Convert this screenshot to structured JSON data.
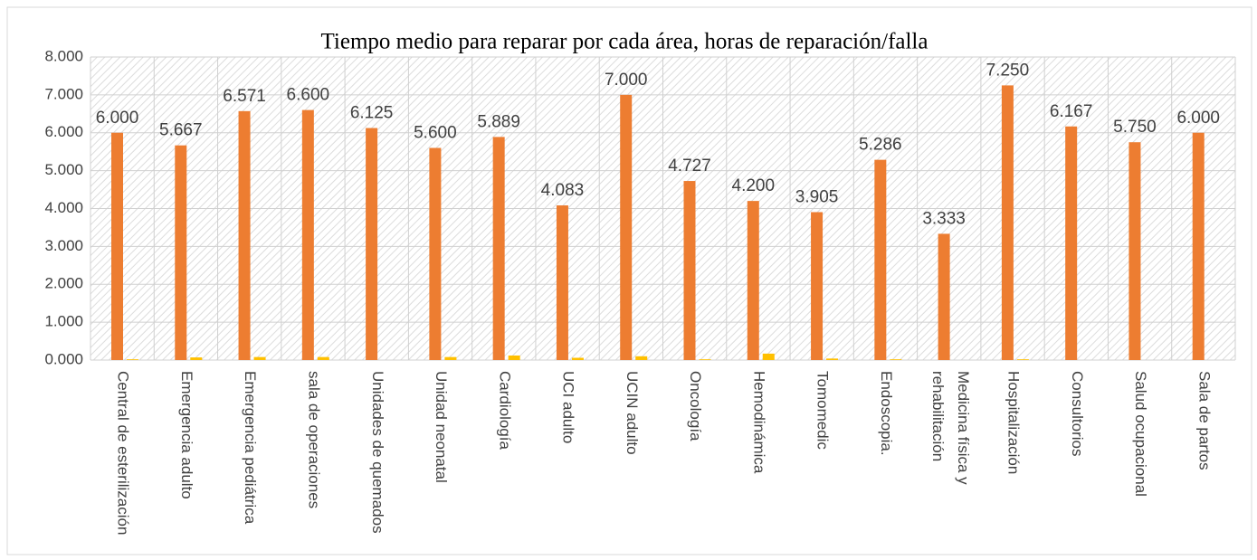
{
  "chart_data": {
    "type": "bar",
    "title": "Tiempo medio para reparar por cada área, horas de reparación/falla",
    "categories": [
      "Central de esterilización",
      "Emergencia adulto",
      "Emergencia pediátrica",
      "sala de operaciones",
      "Unidades de quemados",
      "Unidad neonatal",
      "Cardiología",
      "UCI adulto",
      "UCIN adulto",
      "Oncología",
      "Hemodinámica",
      "Tomomedic",
      "Endoscopia.",
      "Medicina física y rehabilitación",
      "Hospitalización",
      "Consultorios",
      "Salud ocupacional",
      "Sala de partos"
    ],
    "series": [
      {
        "color": "#ed7d31",
        "values": [
          6.0,
          5.667,
          6.571,
          6.6,
          6.125,
          5.6,
          5.889,
          4.083,
          7.0,
          4.727,
          4.2,
          3.905,
          5.286,
          3.333,
          7.25,
          6.167,
          5.75,
          6.0
        ],
        "value_labels": [
          "6.000",
          "5.667",
          "6.571",
          "6.600",
          "6.125",
          "5.600",
          "5.889",
          "4.083",
          "7.000",
          "4.727",
          "4.200",
          "3.905",
          "5.286",
          "3.333",
          "7.250",
          "6.167",
          "5.750",
          "6.000"
        ]
      },
      {
        "color": "#ffc000",
        "values": [
          0.02,
          0.07,
          0.08,
          0.08,
          0,
          0.08,
          0.12,
          0.06,
          0.1,
          0.02,
          0.17,
          0.04,
          0.02,
          0,
          0.02,
          0,
          0,
          0
        ]
      }
    ],
    "ylim": [
      0,
      8
    ],
    "yticks": [
      {
        "value": 0,
        "label": "0.000"
      },
      {
        "value": 1,
        "label": "1.000"
      },
      {
        "value": 2,
        "label": "2.000"
      },
      {
        "value": 3,
        "label": "3.000"
      },
      {
        "value": 4,
        "label": "4.000"
      },
      {
        "value": 5,
        "label": "5.000"
      },
      {
        "value": 6,
        "label": "6.000"
      },
      {
        "value": 7,
        "label": "7.000"
      },
      {
        "value": 8,
        "label": "8.000"
      }
    ],
    "grid": true
  }
}
